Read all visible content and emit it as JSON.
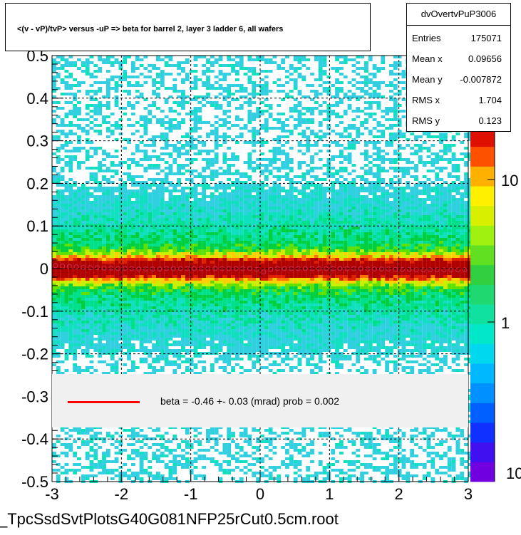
{
  "title": "<(v - vP)/tvP> versus  -uP => beta for barrel 2, layer 3 ladder 6, all wafers",
  "stats": {
    "name": "dvOvertvPuP3006",
    "rows": [
      {
        "label": "Entries",
        "value": "175071"
      },
      {
        "label": "Mean x",
        "value": "0.09656"
      },
      {
        "label": "Mean y",
        "value": "-0.007872"
      },
      {
        "label": "RMS x",
        "value": "1.704"
      },
      {
        "label": "RMS y",
        "value": "0.123"
      }
    ]
  },
  "fit": {
    "text": "beta =    -0.46 +-  0.03 (mrad) prob = 0.002",
    "line_color": "#ff0000"
  },
  "filename": "_TpcSsdSvtPlotsG40G081NFP25rCut0.5cm.root",
  "chart_data": {
    "type": "heatmap",
    "title": "<(v - vP)/tvP> versus  -uP => beta for barrel 2, layer 3 ladder 6, all wafers",
    "xlim": [
      -3,
      3
    ],
    "ylim": [
      -0.5,
      0.5
    ],
    "x_ticks": [
      "-3",
      "-2",
      "-1",
      "0",
      "1",
      "2",
      "3"
    ],
    "y_ticks": [
      "-0.5",
      "-0.4",
      "-0.3",
      "-0.2",
      "-0.1",
      "0",
      "0.1",
      "0.2",
      "0.3",
      "0.4",
      "0.5"
    ],
    "color_scale": "log",
    "z_ticks": [
      "1",
      "10"
    ],
    "z_ticks_partial": [
      "10"
    ],
    "grid": true,
    "profile_points": {
      "x": [
        -2.95,
        -2.85,
        -2.75,
        -2.65,
        -2.55,
        -2.45,
        -2.35,
        -2.25,
        -2.15,
        -2.05,
        -1.95,
        -1.85,
        -1.75,
        -1.65,
        -1.55,
        -1.45,
        -1.35,
        -1.25,
        -1.15,
        -1.05,
        -0.95,
        -0.85,
        -0.75,
        -0.65,
        -0.55,
        -0.45,
        -0.35,
        -0.25,
        -0.15,
        -0.05,
        0.05,
        0.15,
        0.25,
        0.35,
        0.45,
        0.55,
        0.65,
        0.75,
        0.85,
        0.95,
        1.05,
        1.15,
        1.25,
        1.35,
        1.45,
        1.55,
        1.65,
        1.75,
        1.85,
        1.95,
        2.05,
        2.15,
        2.25,
        2.35,
        2.45,
        2.55,
        2.65,
        2.75,
        2.85,
        2.95
      ],
      "y": [
        0.007,
        0.006,
        0.005,
        0.004,
        0.003,
        0.002,
        0.002,
        0.001,
        0.001,
        0.0,
        0.0,
        0.0,
        -0.001,
        -0.001,
        -0.001,
        -0.001,
        0.0,
        0.0,
        0.0,
        0.0,
        0.0,
        0.0,
        0.0,
        0.0,
        0.0,
        0.0,
        0.0,
        0.0,
        0.0,
        -0.002,
        -0.008,
        -0.002,
        0.0,
        0.0,
        0.0,
        0.0,
        0.0,
        0.0,
        0.0,
        0.0,
        0.0,
        0.0,
        0.0,
        0.0,
        0.0,
        -0.001,
        -0.001,
        -0.001,
        -0.001,
        -0.002,
        -0.002,
        -0.002,
        -0.003,
        -0.003,
        -0.003,
        -0.003,
        -0.003,
        -0.003,
        -0.003,
        -0.003
      ]
    },
    "fit_line": {
      "slope_mrad": -0.46,
      "error_mrad": 0.03,
      "prob": 0.002
    }
  }
}
